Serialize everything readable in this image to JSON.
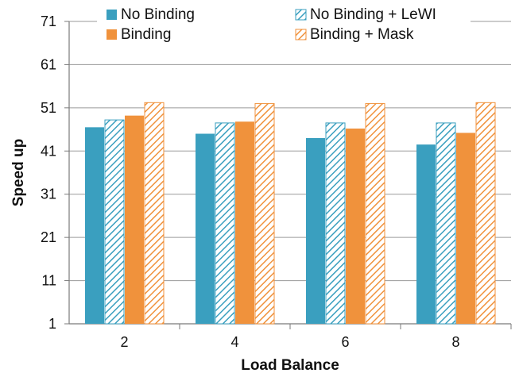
{
  "chart_data": {
    "type": "bar",
    "xlabel": "Load Balance",
    "ylabel": "Speed up",
    "categories": [
      "2",
      "4",
      "6",
      "8"
    ],
    "ylim": [
      1,
      71
    ],
    "yticks": [
      1,
      11,
      21,
      31,
      41,
      51,
      61,
      71
    ],
    "grid": "horizontal",
    "legend_position": "top",
    "series": [
      {
        "name": "No Binding",
        "values": [
          46.5,
          45,
          44,
          42.5
        ],
        "color": "#3a9fbf",
        "pattern": "solid"
      },
      {
        "name": "No Binding + LeWI",
        "values": [
          48.2,
          47.5,
          47.5,
          47.5
        ],
        "color": "#3a9fbf",
        "pattern": "hatched"
      },
      {
        "name": "Binding",
        "values": [
          49.2,
          47.8,
          46.2,
          45.2
        ],
        "color": "#f0923c",
        "pattern": "solid"
      },
      {
        "name": "Binding + Mask",
        "values": [
          52.2,
          52,
          52,
          52.2
        ],
        "color": "#f0923c",
        "pattern": "hatched"
      }
    ]
  }
}
